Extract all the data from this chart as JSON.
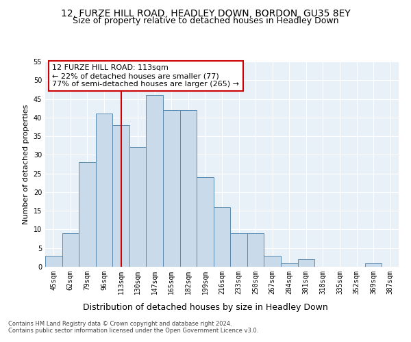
{
  "title1": "12, FURZE HILL ROAD, HEADLEY DOWN, BORDON, GU35 8EY",
  "title2": "Size of property relative to detached houses in Headley Down",
  "xlabel": "Distribution of detached houses by size in Headley Down",
  "ylabel": "Number of detached properties",
  "footnote1": "Contains HM Land Registry data © Crown copyright and database right 2024.",
  "footnote2": "Contains public sector information licensed under the Open Government Licence v3.0.",
  "bar_labels": [
    "45sqm",
    "62sqm",
    "79sqm",
    "96sqm",
    "113sqm",
    "130sqm",
    "147sqm",
    "165sqm",
    "182sqm",
    "199sqm",
    "216sqm",
    "233sqm",
    "250sqm",
    "267sqm",
    "284sqm",
    "301sqm",
    "318sqm",
    "335sqm",
    "352sqm",
    "369sqm",
    "387sqm"
  ],
  "bar_values": [
    3,
    9,
    28,
    41,
    38,
    32,
    46,
    42,
    42,
    24,
    16,
    9,
    9,
    3,
    1,
    2,
    0,
    0,
    0,
    1,
    0
  ],
  "bar_color": "#c9daea",
  "bar_edge_color": "#5a8ab0",
  "vline_x": 4,
  "vline_color": "#cc0000",
  "annotation_text": "12 FURZE HILL ROAD: 113sqm\n← 22% of detached houses are smaller (77)\n77% of semi-detached houses are larger (265) →",
  "annotation_box_color": "#ffffff",
  "annotation_box_edge_color": "#cc0000",
  "ylim": [
    0,
    55
  ],
  "yticks": [
    0,
    5,
    10,
    15,
    20,
    25,
    30,
    35,
    40,
    45,
    50,
    55
  ],
  "plot_bg_color": "#e8f0f8",
  "title1_fontsize": 10,
  "title2_fontsize": 9,
  "xlabel_fontsize": 9,
  "ylabel_fontsize": 8,
  "tick_fontsize": 7,
  "annotation_fontsize": 8,
  "footnote_fontsize": 6
}
